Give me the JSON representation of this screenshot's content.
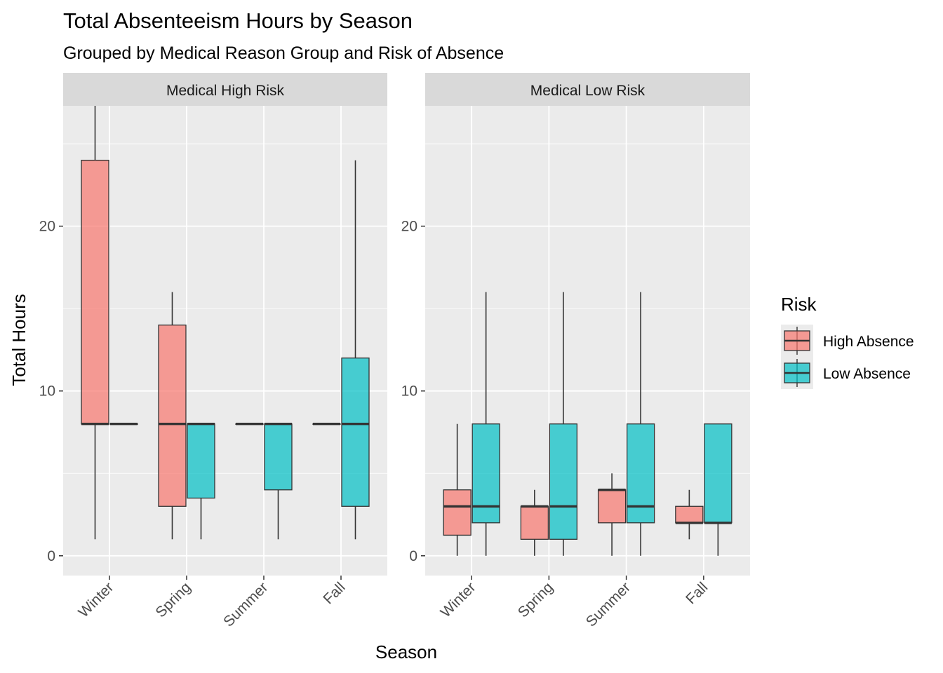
{
  "chart_data": {
    "type": "box",
    "title": "Total Absenteeism Hours by Season",
    "subtitle": "Grouped by Medical Reason Group and Risk of Absence",
    "xlabel": "Season",
    "ylabel": "Total Hours",
    "categories": [
      "Winter",
      "Spring",
      "Summer",
      "Fall"
    ],
    "y_ticks": [
      0,
      10,
      20
    ],
    "ylim": [
      -1.2,
      27.3
    ],
    "grid": true,
    "legend": {
      "title": "Risk",
      "placement": "right",
      "entries": [
        {
          "name": "High Absence",
          "color": "#F8766D"
        },
        {
          "name": "Low Absence",
          "color": "#00BFC4"
        }
      ]
    },
    "panels": [
      {
        "name": "Medical High Risk",
        "boxes": [
          {
            "category": "Winter",
            "series": "High Absence",
            "min": 1,
            "q1": 8,
            "median": 8,
            "q3": 24,
            "max": 27.3
          },
          {
            "category": "Winter",
            "series": "Low Absence",
            "min": 8,
            "q1": 8,
            "median": 8,
            "q3": 8,
            "max": 8
          },
          {
            "category": "Spring",
            "series": "High Absence",
            "min": 1,
            "q1": 3,
            "median": 8,
            "q3": 14,
            "max": 16
          },
          {
            "category": "Spring",
            "series": "Low Absence",
            "min": 1,
            "q1": 3.5,
            "median": 8,
            "q3": 8,
            "max": 8
          },
          {
            "category": "Summer",
            "series": "High Absence",
            "min": 8,
            "q1": 8,
            "median": 8,
            "q3": 8,
            "max": 8
          },
          {
            "category": "Summer",
            "series": "Low Absence",
            "min": 1,
            "q1": 4,
            "median": 8,
            "q3": 8,
            "max": 8
          },
          {
            "category": "Fall",
            "series": "High Absence",
            "min": 8,
            "q1": 8,
            "median": 8,
            "q3": 8,
            "max": 8
          },
          {
            "category": "Fall",
            "series": "Low Absence",
            "min": 1,
            "q1": 3,
            "median": 8,
            "q3": 12,
            "max": 24
          }
        ]
      },
      {
        "name": "Medical Low Risk",
        "boxes": [
          {
            "category": "Winter",
            "series": "High Absence",
            "min": 0,
            "q1": 1.25,
            "median": 3,
            "q3": 4,
            "max": 8
          },
          {
            "category": "Winter",
            "series": "Low Absence",
            "min": 0,
            "q1": 2,
            "median": 3,
            "q3": 8,
            "max": 16
          },
          {
            "category": "Spring",
            "series": "High Absence",
            "min": 0,
            "q1": 1,
            "median": 3,
            "q3": 3,
            "max": 4
          },
          {
            "category": "Spring",
            "series": "Low Absence",
            "min": 0,
            "q1": 1,
            "median": 3,
            "q3": 8,
            "max": 16
          },
          {
            "category": "Summer",
            "series": "High Absence",
            "min": 0,
            "q1": 2,
            "median": 4,
            "q3": 4,
            "max": 5
          },
          {
            "category": "Summer",
            "series": "Low Absence",
            "min": 0,
            "q1": 2,
            "median": 3,
            "q3": 8,
            "max": 16
          },
          {
            "category": "Fall",
            "series": "High Absence",
            "min": 1,
            "q1": 2,
            "median": 2,
            "q3": 3,
            "max": 4
          },
          {
            "category": "Fall",
            "series": "Low Absence",
            "min": 0,
            "q1": 2,
            "median": 2,
            "q3": 8,
            "max": 8
          }
        ]
      }
    ]
  }
}
